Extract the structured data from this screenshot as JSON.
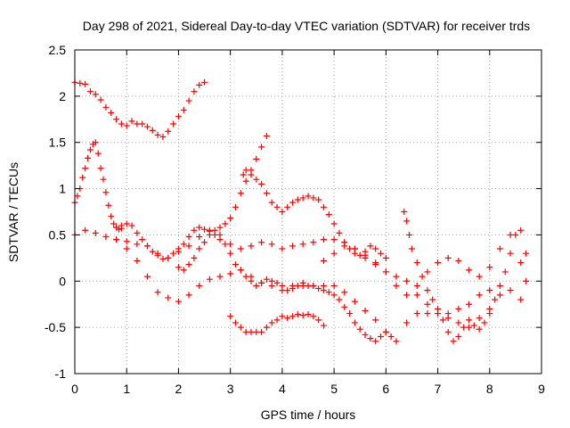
{
  "chart_data": {
    "type": "scatter",
    "title": "Day 298 of 2021, Sidereal Day-to-day VTEC variation (SDTVAR) for receiver trds",
    "xlabel": "GPS time / hours",
    "ylabel": "SDTVAR / TECUs",
    "xlim": [
      0,
      9
    ],
    "ylim": [
      -1,
      2.5
    ],
    "xticks": [
      "0",
      "1",
      "2",
      "3",
      "4",
      "5",
      "6",
      "7",
      "8",
      "9"
    ],
    "yticks": [
      "-1",
      "-0.5",
      "0",
      "0.5",
      "1",
      "1.5",
      "2",
      "2.5"
    ],
    "grid": true,
    "legend": "none",
    "marker": "plus",
    "color": "#ff0000",
    "series": [
      {
        "x": [
          0.0,
          0.1,
          0.2,
          0.3,
          0.4,
          0.5,
          0.6,
          0.7,
          0.8,
          0.9,
          1.0,
          1.1,
          1.2,
          1.3,
          1.4,
          1.5,
          1.6,
          1.7,
          1.8,
          1.9,
          2.0,
          2.1,
          2.2,
          2.3,
          2.4,
          2.5
        ],
        "y": [
          2.15,
          2.14,
          2.13,
          2.05,
          2.02,
          1.96,
          1.88,
          1.82,
          1.75,
          1.7,
          1.68,
          1.73,
          1.7,
          1.7,
          1.67,
          1.63,
          1.58,
          1.56,
          1.62,
          1.7,
          1.78,
          1.85,
          1.95,
          2.05,
          2.12,
          2.15
        ]
      },
      {
        "x": [
          0.0,
          0.05,
          0.1,
          0.15,
          0.2,
          0.25,
          0.3,
          0.35,
          0.4,
          0.45,
          0.5,
          0.55,
          0.6,
          0.65,
          0.7,
          0.75,
          0.8,
          0.85,
          0.9
        ],
        "y": [
          0.85,
          0.92,
          1.0,
          1.12,
          1.22,
          1.33,
          1.42,
          1.48,
          1.5,
          1.38,
          1.22,
          1.1,
          0.96,
          0.82,
          0.7,
          0.62,
          0.58,
          0.56,
          0.57
        ]
      },
      {
        "x": [
          0.0,
          0.2,
          0.4,
          0.6,
          0.8,
          1.0,
          1.2,
          1.4,
          1.6,
          1.8,
          2.0,
          2.2,
          2.4,
          2.6,
          2.8,
          3.0,
          3.2,
          3.4,
          3.6,
          3.8,
          4.0,
          4.2,
          4.4,
          4.6,
          4.8,
          5.0,
          5.2,
          5.4,
          5.6,
          5.8,
          6.0,
          6.2,
          6.4,
          6.6,
          6.8,
          7.0,
          7.2,
          7.4,
          7.6,
          7.8,
          8.0
        ],
        "y": [
          0.5,
          0.55,
          0.52,
          0.48,
          0.45,
          0.43,
          0.4,
          0.38,
          0.3,
          0.25,
          0.32,
          0.38,
          0.48,
          0.55,
          0.5,
          0.4,
          0.35,
          0.38,
          0.42,
          0.4,
          0.35,
          0.38,
          0.4,
          0.42,
          0.45,
          0.45,
          0.42,
          0.35,
          0.25,
          0.18,
          0.1,
          0.05,
          0.0,
          -0.15,
          -0.25,
          -0.35,
          -0.35,
          -0.3,
          -0.25,
          -0.15,
          -0.1
        ]
      },
      {
        "x": [
          0.8,
          1.0,
          1.2,
          1.4,
          1.6,
          1.8,
          2.0,
          2.2,
          2.4,
          2.6,
          2.8,
          3.0,
          3.2,
          3.4,
          3.6,
          3.8,
          4.0,
          4.2,
          4.4,
          4.6,
          4.8,
          5.0,
          5.2,
          5.4,
          5.6,
          5.8,
          6.0,
          6.2,
          6.4,
          6.6,
          6.8,
          7.0,
          7.2,
          7.4,
          7.6,
          7.8,
          8.0,
          8.2,
          8.4,
          8.6
        ],
        "y": [
          0.45,
          0.35,
          0.22,
          0.05,
          -0.12,
          -0.18,
          -0.22,
          -0.15,
          -0.05,
          0.02,
          0.05,
          0.08,
          0.12,
          0.05,
          -0.02,
          -0.05,
          -0.1,
          -0.05,
          -0.02,
          -0.05,
          -0.05,
          -0.05,
          -0.12,
          -0.22,
          -0.32,
          -0.42,
          -0.55,
          -0.65,
          -0.45,
          -0.35,
          -0.35,
          -0.35,
          -0.4,
          -0.45,
          -0.5,
          -0.4,
          -0.3,
          -0.15,
          -0.1,
          -0.2
        ]
      },
      {
        "x": [
          0.9,
          1.0,
          1.1,
          1.2,
          1.3,
          1.4,
          1.5,
          1.6,
          1.7,
          1.8,
          1.9,
          2.0,
          2.1,
          2.2,
          2.3,
          2.4,
          2.5,
          2.6,
          2.7,
          2.8,
          2.9,
          3.0,
          3.1,
          3.2,
          3.3,
          3.4,
          3.5,
          3.6,
          3.7,
          3.8,
          3.9,
          4.0,
          4.1,
          4.2,
          4.3,
          4.4,
          4.5,
          4.6,
          4.7,
          4.8,
          4.9,
          5.0,
          5.1,
          5.2,
          5.3,
          5.4,
          5.5,
          5.6,
          5.7,
          5.8,
          5.9,
          6.0,
          6.1
        ],
        "y": [
          0.6,
          0.62,
          0.6,
          0.52,
          0.45,
          0.38,
          0.32,
          0.28,
          0.24,
          0.25,
          0.3,
          0.35,
          0.4,
          0.48,
          0.55,
          0.58,
          0.56,
          0.54,
          0.5,
          0.45,
          0.4,
          0.3,
          0.18,
          0.12,
          0.05,
          0.0,
          -0.05,
          -0.02,
          0.02,
          0.0,
          -0.02,
          -0.05,
          -0.1,
          -0.08,
          -0.05,
          -0.05,
          -0.05,
          -0.05,
          -0.08,
          -0.1,
          -0.12,
          -0.15,
          -0.2,
          -0.28,
          -0.35,
          -0.45,
          -0.52,
          -0.58,
          -0.62,
          -0.65,
          -0.6,
          -0.55,
          -0.6
        ]
      },
      {
        "x": [
          2.0,
          2.1,
          2.2,
          2.3,
          2.4,
          2.5,
          2.6,
          2.7,
          2.8,
          2.9,
          3.0,
          3.1,
          3.2,
          3.3,
          3.4,
          3.5,
          3.6,
          3.7
        ],
        "y": [
          0.15,
          0.12,
          0.18,
          0.25,
          0.35,
          0.42,
          0.5,
          0.55,
          0.58,
          0.62,
          0.68,
          0.8,
          0.95,
          1.08,
          1.2,
          1.32,
          1.45,
          1.57
        ]
      },
      {
        "x": [
          3.0,
          3.1,
          3.2,
          3.3,
          3.4,
          3.5,
          3.6,
          3.7,
          3.8,
          3.9,
          4.0,
          4.1,
          4.2,
          4.3,
          4.4,
          4.5,
          4.6,
          4.7,
          4.8
        ],
        "y": [
          -0.38,
          -0.45,
          -0.5,
          -0.55,
          -0.55,
          -0.55,
          -0.55,
          -0.5,
          -0.45,
          -0.42,
          -0.38,
          -0.4,
          -0.38,
          -0.36,
          -0.37,
          -0.36,
          -0.38,
          -0.42,
          -0.48
        ]
      },
      {
        "x": [
          3.25,
          3.3,
          3.4,
          3.5,
          3.6,
          3.7,
          3.8,
          3.9,
          4.0,
          4.1,
          4.2,
          4.3,
          4.4,
          4.5,
          4.6,
          4.7,
          4.8,
          4.9,
          5.0,
          5.1,
          5.2,
          5.3,
          5.4,
          5.5,
          5.6,
          5.7,
          5.8,
          5.9,
          6.0
        ],
        "y": [
          1.15,
          1.2,
          1.15,
          1.1,
          1.05,
          0.95,
          0.85,
          0.8,
          0.75,
          0.8,
          0.85,
          0.88,
          0.9,
          0.92,
          0.9,
          0.88,
          0.8,
          0.72,
          0.62,
          0.52,
          0.42,
          0.35,
          0.3,
          0.28,
          0.32,
          0.38,
          0.35,
          0.3,
          0.25
        ]
      },
      {
        "x": [
          4.8,
          5.0,
          5.2,
          5.4,
          5.6,
          5.8,
          6.0,
          6.2,
          6.4,
          6.6,
          6.8,
          7.0,
          7.2,
          7.4,
          7.6,
          7.8,
          8.0,
          8.2,
          8.4,
          8.6,
          8.7
        ],
        "y": [
          0.22,
          0.3,
          0.38,
          0.35,
          0.28,
          0.2,
          0.1,
          -0.05,
          -0.15,
          -0.05,
          0.1,
          0.2,
          0.25,
          0.22,
          0.12,
          0.05,
          0.15,
          0.35,
          0.5,
          0.55,
          0.3
        ]
      },
      {
        "x": [
          6.35,
          6.4,
          6.45,
          6.5,
          6.6,
          6.7,
          6.8,
          6.9,
          7.0,
          7.1,
          7.2,
          7.3,
          7.4,
          7.5,
          7.6,
          7.7,
          7.8,
          7.9,
          8.0,
          8.1,
          8.2,
          8.3,
          8.4,
          8.5,
          8.6,
          8.7
        ],
        "y": [
          0.75,
          0.65,
          0.5,
          0.35,
          0.2,
          0.05,
          -0.1,
          -0.2,
          -0.3,
          -0.42,
          -0.55,
          -0.65,
          -0.6,
          -0.5,
          -0.42,
          -0.48,
          -0.52,
          -0.45,
          -0.35,
          -0.2,
          -0.05,
          0.1,
          0.3,
          0.5,
          0.2,
          0.0
        ]
      }
    ]
  }
}
